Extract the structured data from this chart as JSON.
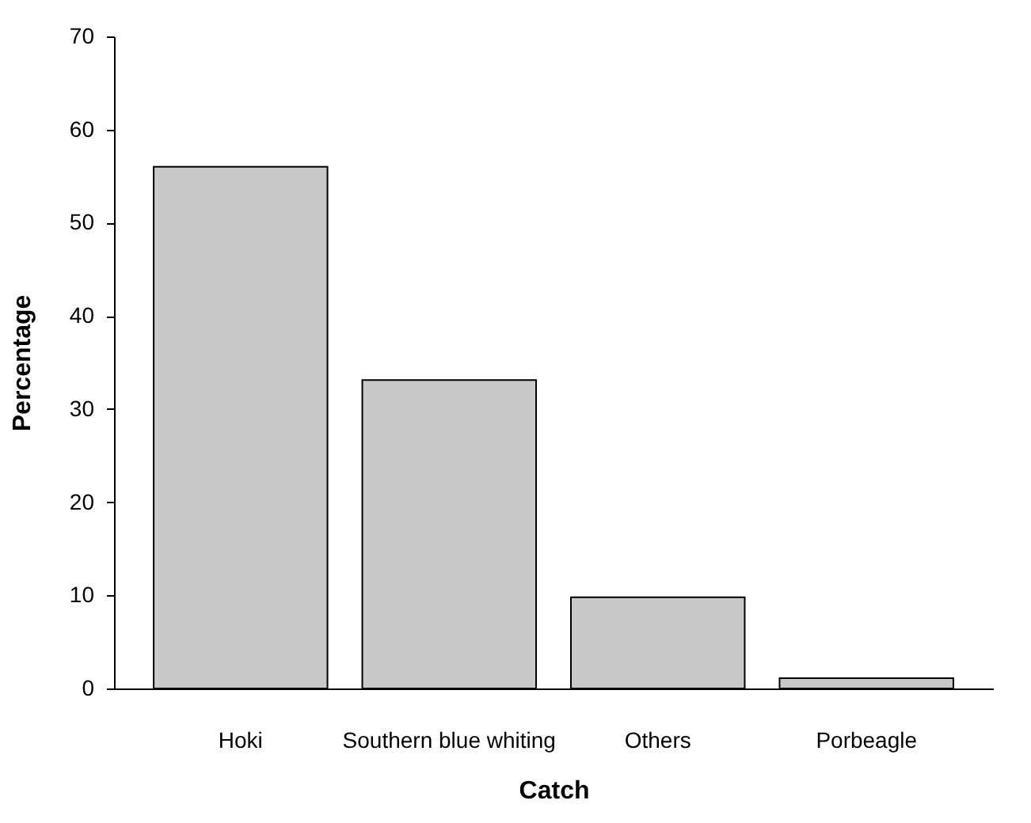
{
  "chart_data": {
    "type": "bar",
    "xlabel": "Catch",
    "ylabel": "Percentage",
    "categories": [
      "Hoki",
      "Southern blue whiting",
      "Others",
      "Porbeagle"
    ],
    "values": [
      56,
      33.1,
      9.8,
      1.1
    ],
    "color": "#c8c8c8",
    "ylim": [
      0,
      70
    ],
    "yticks": [
      0,
      10,
      20,
      30,
      40,
      50,
      60,
      70
    ],
    "grid": false
  }
}
